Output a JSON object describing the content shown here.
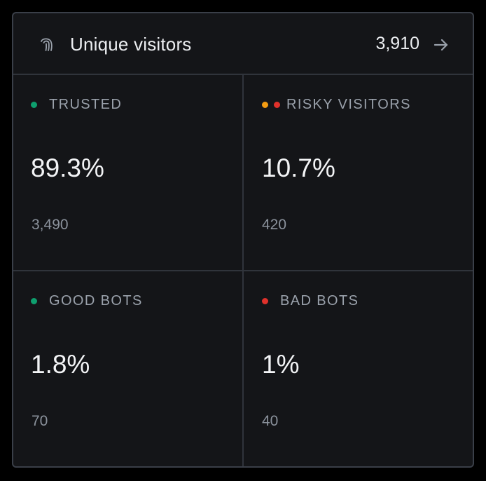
{
  "header": {
    "icon": "fingerprint-icon",
    "title": "Unique visitors",
    "count": "3,910",
    "arrow_icon": "arrow-right-icon"
  },
  "colors": {
    "green": "#0e9f6e",
    "orange": "#f39c12",
    "red": "#e0312b"
  },
  "segments": [
    {
      "label": "TRUSTED",
      "percent": "89.3%",
      "count": "3,490"
    },
    {
      "label": "RISKY VISITORS",
      "percent": "10.7%",
      "count": "420"
    },
    {
      "label": "GOOD BOTS",
      "percent": "1.8%",
      "count": "70"
    },
    {
      "label": "BAD BOTS",
      "percent": "1%",
      "count": "40"
    }
  ]
}
